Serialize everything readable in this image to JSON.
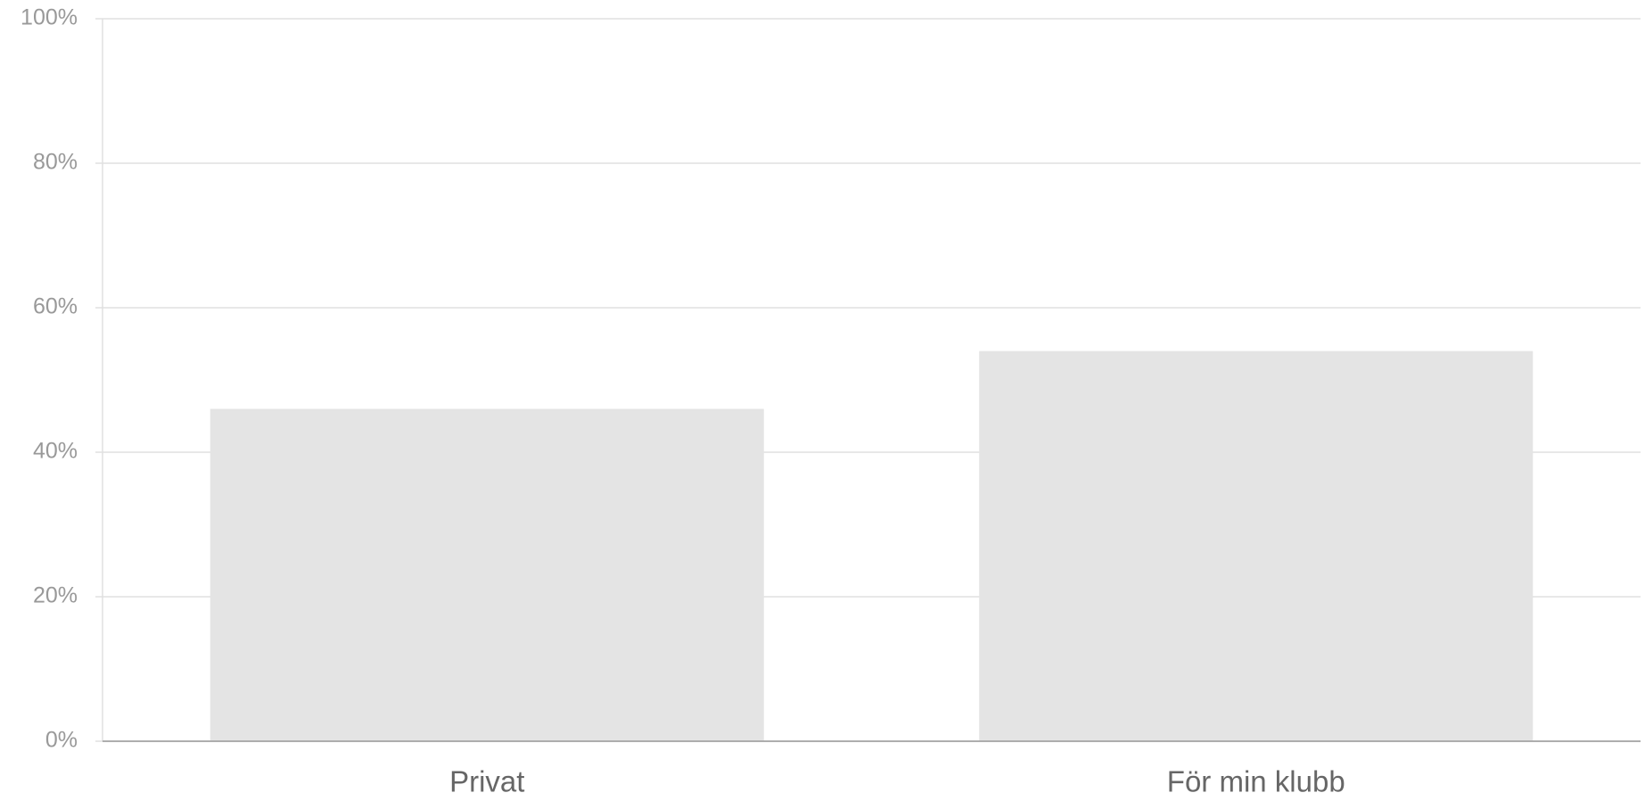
{
  "chart_data": {
    "type": "bar",
    "categories": [
      "Privat",
      "För min klubb"
    ],
    "values": [
      46,
      54
    ],
    "color": "#e4e4e4",
    "ylim": [
      0,
      100
    ],
    "yticks": [
      {
        "value": 0,
        "label": "0%"
      },
      {
        "value": 20,
        "label": "20%"
      },
      {
        "value": 40,
        "label": "40%"
      },
      {
        "value": 60,
        "label": "60%"
      },
      {
        "value": 80,
        "label": "80%"
      },
      {
        "value": 100,
        "label": "100%"
      }
    ],
    "grid": true
  }
}
